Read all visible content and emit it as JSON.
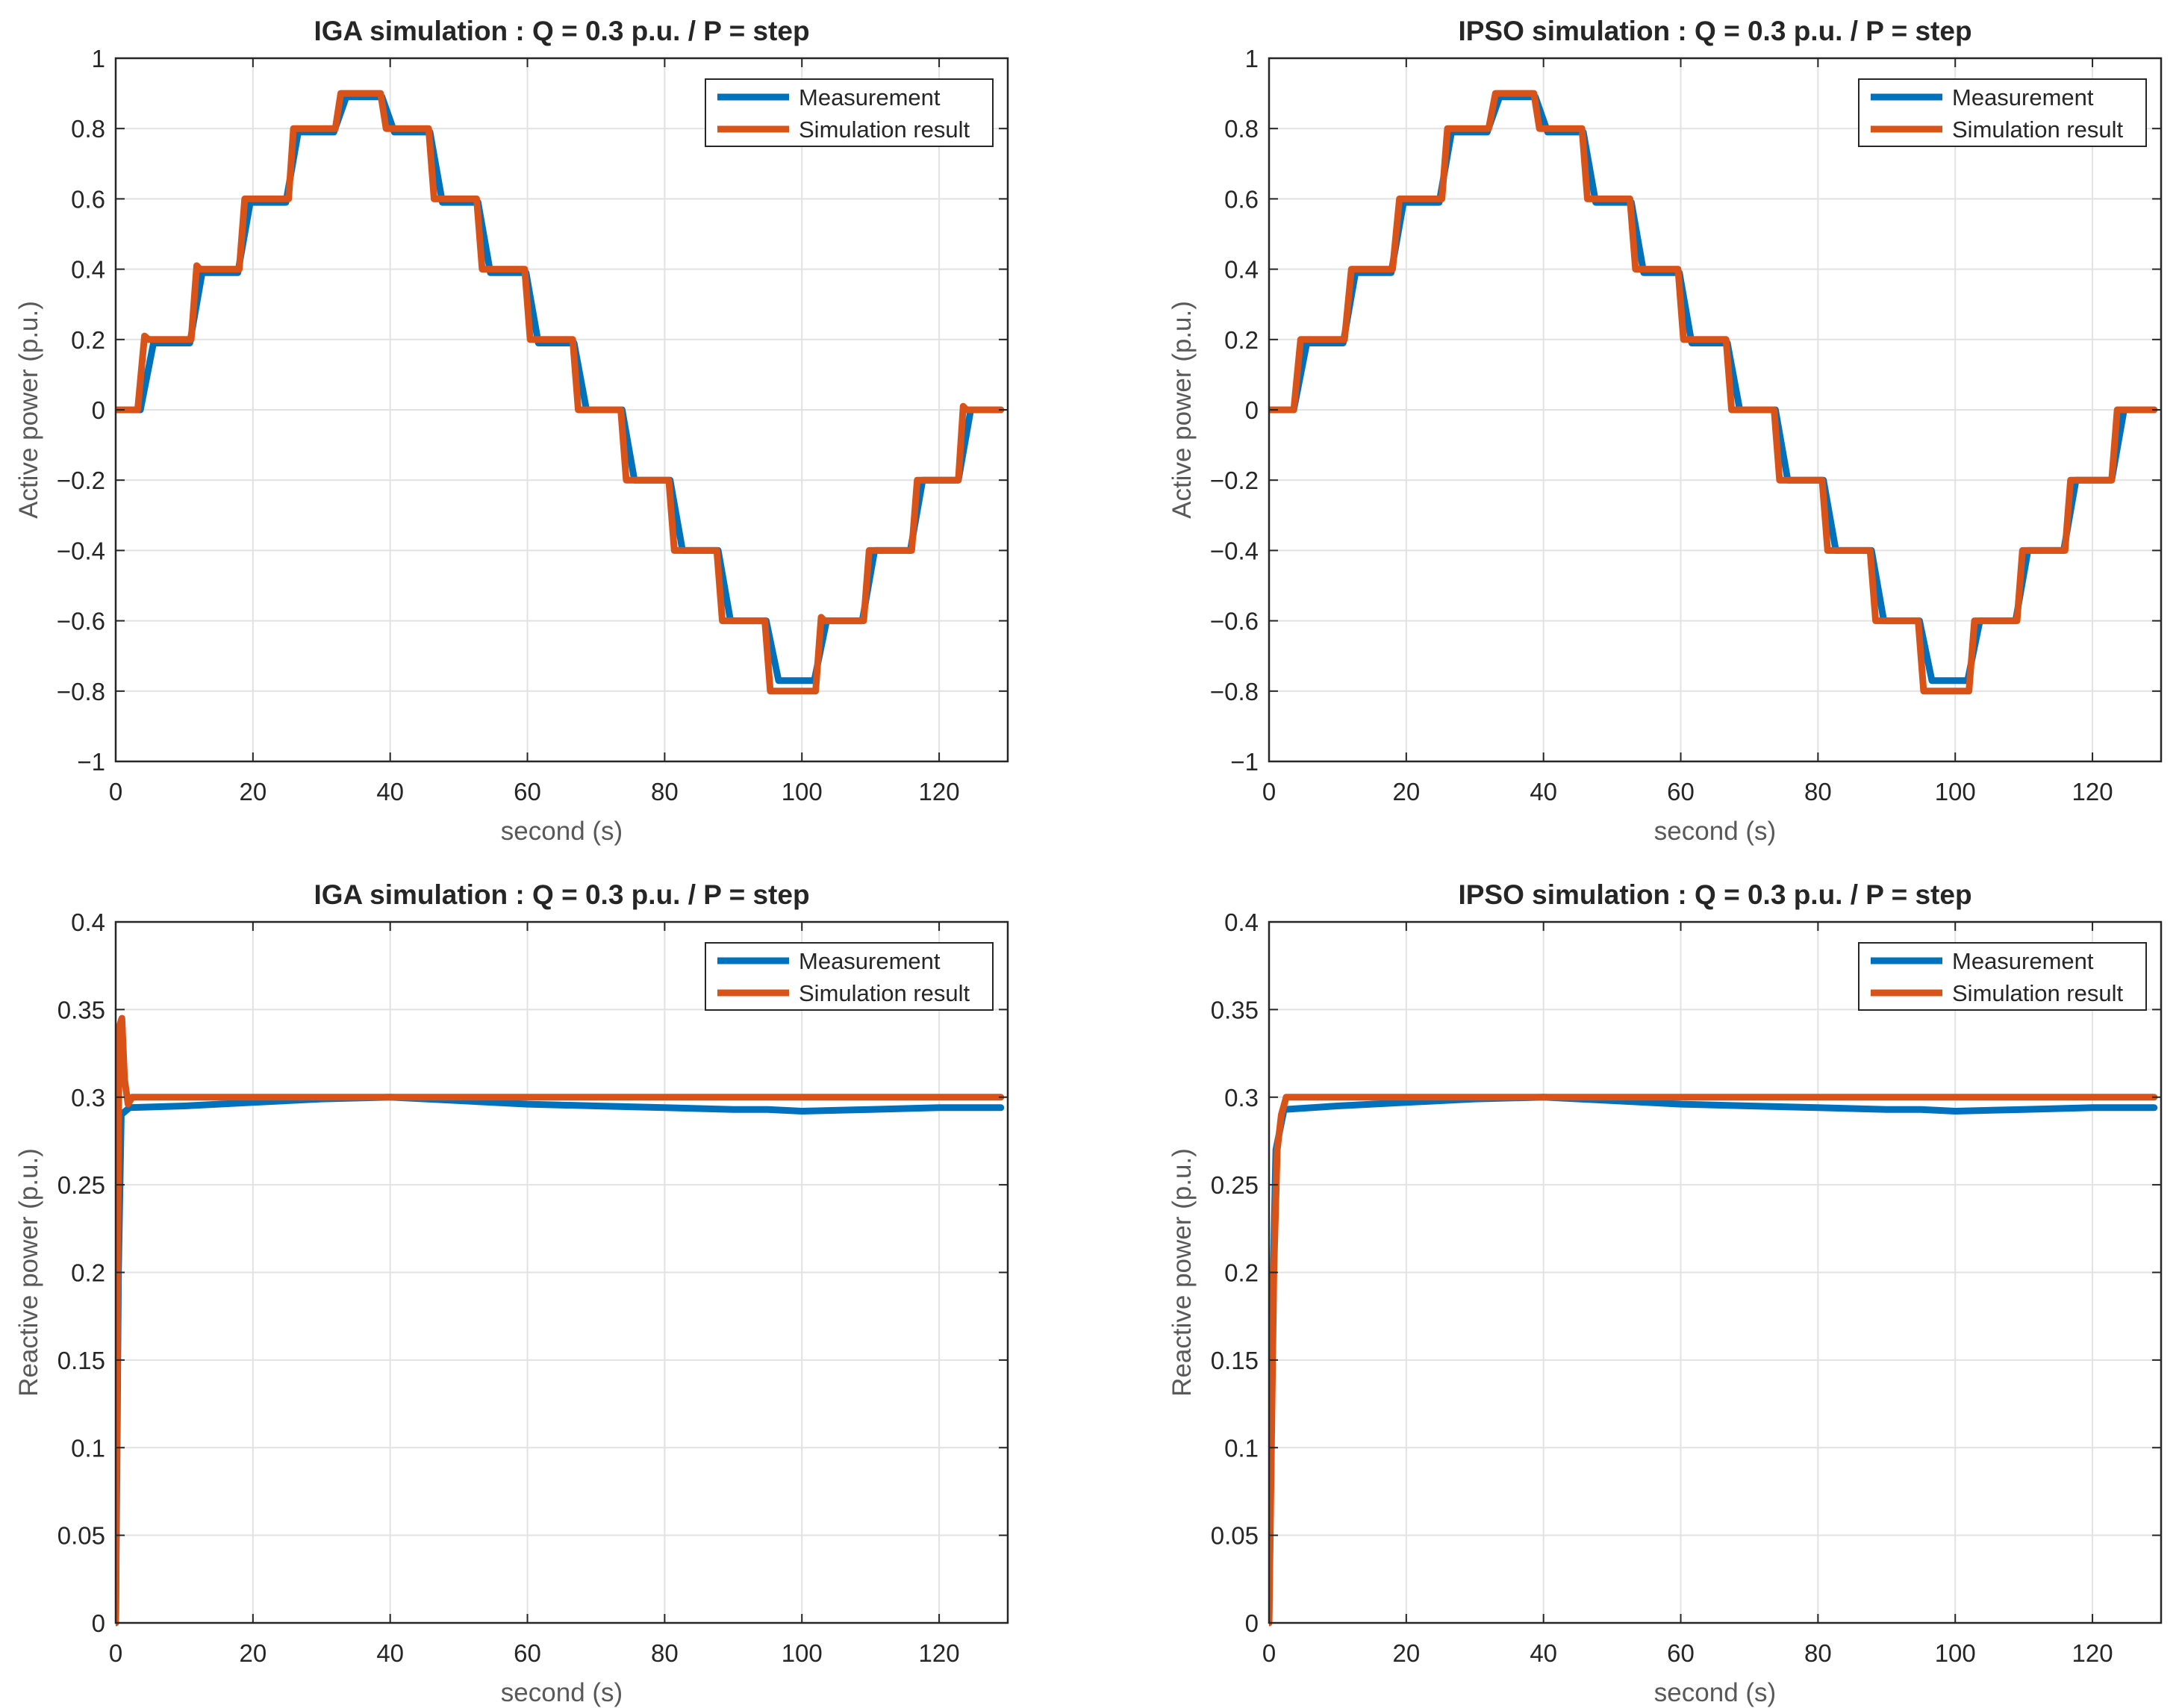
{
  "colors": {
    "measurement": "#0072BD",
    "simulation": "#D95319",
    "grid": "#e2e2e2",
    "axis": "#262626"
  },
  "chart_data": [
    {
      "type": "line",
      "title": "IGA simulation : Q = 0.3 p.u. / P = step",
      "xlabel": "second (s)",
      "ylabel": "Active power (p.u.)",
      "xlim": [
        0,
        130
      ],
      "ylim": [
        -1,
        1
      ],
      "xticks": [
        0,
        20,
        40,
        60,
        80,
        100,
        120
      ],
      "xticklabels": [
        "0",
        "20",
        "40",
        "60",
        "80",
        "100",
        "120"
      ],
      "yticks": [
        -1,
        -0.8,
        -0.6,
        -0.4,
        -0.2,
        0,
        0.2,
        0.4,
        0.6,
        0.8,
        1
      ],
      "yticklabels": [
        "−1",
        "−0.8",
        "−0.6",
        "−0.4",
        "−0.2",
        "0",
        "0.2",
        "0.4",
        "0.6",
        "0.8",
        "1"
      ],
      "legend": {
        "position": "top-right",
        "entries": [
          "Measurement",
          "Simulation result"
        ]
      },
      "series": [
        {
          "name": "Measurement",
          "x": [
            0,
            3.6,
            5.5,
            10.8,
            12.6,
            17.8,
            19.6,
            24.8,
            26.6,
            31.8,
            33.6,
            38.8,
            40.6,
            45.8,
            47.6,
            52.8,
            54.6,
            59.8,
            61.6,
            66.8,
            68.6,
            73.8,
            75.6,
            80.8,
            82.6,
            87.8,
            89.6,
            94.8,
            96.6,
            101.8,
            103.6,
            108.8,
            110.6,
            115.8,
            117.6,
            122.8,
            124.6,
            129
          ],
          "y": [
            0,
            0,
            0.19,
            0.19,
            0.39,
            0.39,
            0.59,
            0.59,
            0.79,
            0.79,
            0.89,
            0.89,
            0.79,
            0.79,
            0.59,
            0.59,
            0.39,
            0.39,
            0.19,
            0.19,
            0,
            0,
            -0.2,
            -0.2,
            -0.4,
            -0.4,
            -0.6,
            -0.6,
            -0.77,
            -0.77,
            -0.6,
            -0.6,
            -0.4,
            -0.4,
            -0.2,
            -0.2,
            0,
            0
          ]
        },
        {
          "name": "Simulation result",
          "x": [
            0,
            3.2,
            4.2,
            4.8,
            11,
            11.8,
            12.3,
            18,
            18.8,
            25.2,
            25.9,
            32,
            32.8,
            38.6,
            39.4,
            45.6,
            46.4,
            52.6,
            53.4,
            59.6,
            60.4,
            66.6,
            67.4,
            73.6,
            74.4,
            80.6,
            81.4,
            87.6,
            88.4,
            94.6,
            95.4,
            102,
            102.8,
            103.3,
            109,
            109.8,
            116,
            116.8,
            122.8,
            123.5,
            124,
            129
          ],
          "y": [
            0,
            0,
            0.21,
            0.2,
            0.2,
            0.41,
            0.4,
            0.4,
            0.6,
            0.6,
            0.8,
            0.8,
            0.9,
            0.9,
            0.8,
            0.8,
            0.6,
            0.6,
            0.4,
            0.4,
            0.2,
            0.2,
            0,
            0,
            -0.2,
            -0.2,
            -0.4,
            -0.4,
            -0.6,
            -0.6,
            -0.8,
            -0.8,
            -0.59,
            -0.6,
            -0.6,
            -0.4,
            -0.4,
            -0.2,
            -0.2,
            0.01,
            0,
            0
          ]
        }
      ]
    },
    {
      "type": "line",
      "title": "IPSO simulation : Q = 0.3 p.u. / P = step",
      "xlabel": "second (s)",
      "ylabel": "Active power (p.u.)",
      "xlim": [
        0,
        130
      ],
      "ylim": [
        -1,
        1
      ],
      "xticks": [
        0,
        20,
        40,
        60,
        80,
        100,
        120
      ],
      "xticklabels": [
        "0",
        "20",
        "40",
        "60",
        "80",
        "100",
        "120"
      ],
      "yticks": [
        -1,
        -0.8,
        -0.6,
        -0.4,
        -0.2,
        0,
        0.2,
        0.4,
        0.6,
        0.8,
        1
      ],
      "yticklabels": [
        "−1",
        "−0.8",
        "−0.6",
        "−0.4",
        "−0.2",
        "0",
        "0.2",
        "0.4",
        "0.6",
        "0.8",
        "1"
      ],
      "legend": {
        "position": "top-right",
        "entries": [
          "Measurement",
          "Simulation result"
        ]
      },
      "series": [
        {
          "name": "Measurement",
          "x": [
            0,
            3.6,
            5.5,
            10.8,
            12.6,
            17.8,
            19.6,
            24.8,
            26.6,
            31.8,
            33.6,
            38.8,
            40.6,
            45.8,
            47.6,
            52.8,
            54.6,
            59.8,
            61.6,
            66.8,
            68.6,
            73.8,
            75.6,
            80.8,
            82.6,
            87.8,
            89.6,
            94.8,
            96.6,
            101.8,
            103.6,
            108.8,
            110.6,
            115.8,
            117.6,
            122.8,
            124.6,
            129
          ],
          "y": [
            0,
            0,
            0.19,
            0.19,
            0.39,
            0.39,
            0.59,
            0.59,
            0.79,
            0.79,
            0.89,
            0.89,
            0.79,
            0.79,
            0.59,
            0.59,
            0.39,
            0.39,
            0.19,
            0.19,
            0,
            0,
            -0.2,
            -0.2,
            -0.4,
            -0.4,
            -0.6,
            -0.6,
            -0.77,
            -0.77,
            -0.6,
            -0.6,
            -0.4,
            -0.4,
            -0.2,
            -0.2,
            0,
            0
          ]
        },
        {
          "name": "Simulation result",
          "x": [
            0,
            3.6,
            4.6,
            11,
            12,
            18,
            19,
            25.2,
            26,
            32,
            33,
            38.6,
            39.4,
            45.6,
            46.4,
            52.6,
            53.4,
            59.6,
            60.4,
            66.6,
            67.4,
            73.6,
            74.4,
            80.6,
            81.4,
            87.6,
            88.4,
            94.6,
            95.4,
            102,
            102.8,
            109,
            109.8,
            116,
            116.8,
            122.8,
            123.6,
            129
          ],
          "y": [
            0,
            0,
            0.2,
            0.2,
            0.4,
            0.4,
            0.6,
            0.6,
            0.8,
            0.8,
            0.9,
            0.9,
            0.8,
            0.8,
            0.6,
            0.6,
            0.4,
            0.4,
            0.2,
            0.2,
            0,
            0,
            -0.2,
            -0.2,
            -0.4,
            -0.4,
            -0.6,
            -0.6,
            -0.8,
            -0.8,
            -0.6,
            -0.6,
            -0.4,
            -0.4,
            -0.2,
            -0.2,
            0,
            0
          ]
        }
      ]
    },
    {
      "type": "line",
      "title": "IGA simulation : Q = 0.3 p.u. / P = step",
      "xlabel": "second (s)",
      "ylabel": "Reactive power (p.u.)",
      "xlim": [
        0,
        130
      ],
      "ylim": [
        0,
        0.4
      ],
      "xticks": [
        0,
        20,
        40,
        60,
        80,
        100,
        120
      ],
      "xticklabels": [
        "0",
        "20",
        "40",
        "60",
        "80",
        "100",
        "120"
      ],
      "yticks": [
        0,
        0.05,
        0.1,
        0.15,
        0.2,
        0.25,
        0.3,
        0.35,
        0.4
      ],
      "yticklabels": [
        "0",
        "0.05",
        "0.1",
        "0.15",
        "0.2",
        "0.25",
        "0.3",
        "0.35",
        "0.4"
      ],
      "legend": {
        "position": "top-right",
        "entries": [
          "Measurement",
          "Simulation result"
        ]
      },
      "series": [
        {
          "name": "Measurement",
          "x": [
            0,
            0.4,
            0.8,
            2,
            10,
            20,
            30,
            40,
            50,
            60,
            70,
            80,
            90,
            95,
            100,
            110,
            120,
            129
          ],
          "y": [
            0,
            0.2,
            0.29,
            0.294,
            0.295,
            0.297,
            0.299,
            0.3,
            0.298,
            0.296,
            0.295,
            0.294,
            0.293,
            0.293,
            0.292,
            0.293,
            0.294,
            0.294
          ]
        },
        {
          "name": "Simulation result",
          "x": [
            0,
            0.5,
            0.9,
            1.3,
            1.8,
            2.4,
            129
          ],
          "y": [
            0,
            0.34,
            0.345,
            0.31,
            0.296,
            0.3,
            0.3
          ]
        }
      ]
    },
    {
      "type": "line",
      "title": "IPSO simulation : Q = 0.3 p.u. / P = step",
      "xlabel": "second (s)",
      "ylabel": "Reactive power (p.u.)",
      "xlim": [
        0,
        130
      ],
      "ylim": [
        0,
        0.4
      ],
      "xticks": [
        0,
        20,
        40,
        60,
        80,
        100,
        120
      ],
      "xticklabels": [
        "0",
        "20",
        "40",
        "60",
        "80",
        "100",
        "120"
      ],
      "yticks": [
        0,
        0.05,
        0.1,
        0.15,
        0.2,
        0.25,
        0.3,
        0.35,
        0.4
      ],
      "yticklabels": [
        "0",
        "0.05",
        "0.1",
        "0.15",
        "0.2",
        "0.25",
        "0.3",
        "0.35",
        "0.4"
      ],
      "legend": {
        "position": "top-right",
        "entries": [
          "Measurement",
          "Simulation result"
        ]
      },
      "series": [
        {
          "name": "Measurement",
          "x": [
            0,
            0.5,
            1,
            2.2,
            10,
            20,
            30,
            40,
            50,
            60,
            70,
            80,
            90,
            95,
            100,
            110,
            120,
            129
          ],
          "y": [
            0,
            0.18,
            0.27,
            0.293,
            0.295,
            0.297,
            0.299,
            0.3,
            0.298,
            0.296,
            0.295,
            0.294,
            0.293,
            0.293,
            0.292,
            0.293,
            0.294,
            0.294
          ]
        },
        {
          "name": "Simulation result",
          "x": [
            0,
            0.7,
            1.2,
            1.8,
            2.5,
            129
          ],
          "y": [
            0,
            0.2,
            0.27,
            0.29,
            0.3,
            0.3
          ]
        }
      ]
    }
  ]
}
